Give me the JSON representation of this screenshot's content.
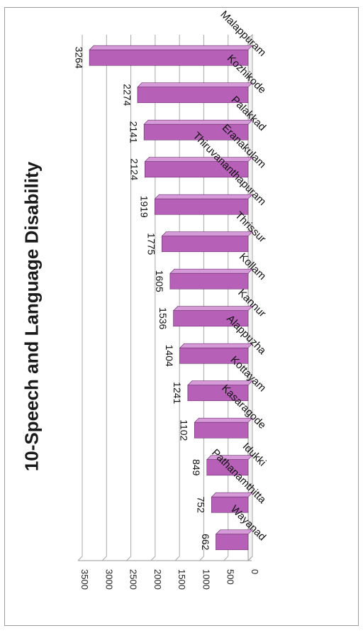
{
  "chart_data": {
    "type": "bar",
    "title": "10-Speech and Language Disability",
    "categories": [
      "Wayanad",
      "Pathanamthitta",
      "Idukki",
      "Kasaragode",
      "Kottayam",
      "Alappuzha",
      "Kannur",
      "Kollam",
      "Thrissur",
      "Thiruvananthapuram",
      "Eranakulam",
      "Palakkad",
      "Kozhikode",
      "Malappuram"
    ],
    "values": [
      662,
      752,
      849,
      1102,
      1241,
      1404,
      1536,
      1605,
      1775,
      1919,
      2124,
      2141,
      2274,
      3264
    ],
    "ticks": [
      "0",
      "500",
      "1000",
      "1500",
      "2000",
      "2500",
      "3000",
      "3500"
    ],
    "ylim": [
      0,
      3500
    ],
    "grid": true,
    "legend": "none",
    "orientation": "rotated-90-clockwise"
  },
  "colors": {
    "bar_front": "#b660b8",
    "bar_top": "#d79ad8",
    "bar_side": "#8d3f90",
    "grid": "#a9a9a9",
    "axis": "#9a9a9a"
  }
}
